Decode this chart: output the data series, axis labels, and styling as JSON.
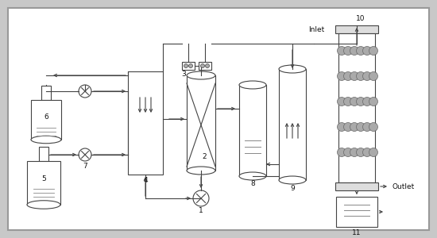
{
  "bg_color": "#c8c8c8",
  "panel_color": "#ffffff",
  "line_color": "#444444",
  "text_color": "#111111",
  "figsize": [
    5.5,
    3.0
  ],
  "dpi": 100
}
